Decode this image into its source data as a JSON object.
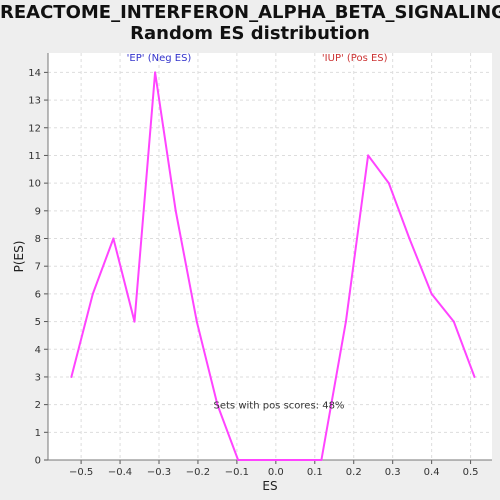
{
  "chart_data": {
    "type": "line",
    "title_lines": [
      "REACTOME_INTERFERON_ALPHA_BETA_SIGNALING:",
      "Random ES distribution"
    ],
    "xlabel": "ES",
    "ylabel": "P(ES)",
    "xlim": [
      -0.585,
      0.555
    ],
    "ylim": [
      0,
      14.7
    ],
    "x_ticks": [
      -0.5,
      -0.4,
      -0.3,
      -0.2,
      -0.1,
      0.0,
      0.1,
      0.2,
      0.3,
      0.4,
      0.5
    ],
    "x_tick_labels": [
      "−0.5",
      "−0.4",
      "−0.3",
      "−0.2",
      "−0.1",
      "0.0",
      "0.1",
      "0.2",
      "0.3",
      "0.4",
      "0.5"
    ],
    "y_ticks": [
      0,
      1,
      2,
      3,
      4,
      5,
      6,
      7,
      8,
      9,
      10,
      11,
      12,
      13,
      14
    ],
    "y_tick_labels": [
      "0",
      "1",
      "2",
      "3",
      "4",
      "5",
      "6",
      "7",
      "8",
      "9",
      "10",
      "11",
      "12",
      "13",
      "14"
    ],
    "grid": true,
    "series": [
      {
        "name": "Random ES distribution",
        "color": "#ff44ff",
        "x": [
          -0.525,
          -0.47,
          -0.417,
          -0.363,
          -0.31,
          -0.257,
          -0.203,
          -0.15,
          -0.097,
          -0.043,
          0.01,
          0.063,
          0.117,
          0.18,
          0.237,
          0.29,
          0.343,
          0.4,
          0.457,
          0.51
        ],
        "y": [
          3,
          6,
          8,
          5,
          14,
          9,
          5,
          2,
          0,
          0,
          0,
          0,
          0,
          5,
          11,
          10,
          8,
          6,
          5,
          3
        ]
      }
    ],
    "annotations": [
      {
        "text": "'EP' (Neg ES)",
        "x": -0.3,
        "color": "#3333cc"
      },
      {
        "text": "'IUP' (Pos ES)",
        "x": 0.2,
        "color": "#cc3333"
      },
      {
        "text": "Sets with pos scores: 48%",
        "x": -0.16,
        "y": 2,
        "color": "#333333"
      }
    ]
  }
}
